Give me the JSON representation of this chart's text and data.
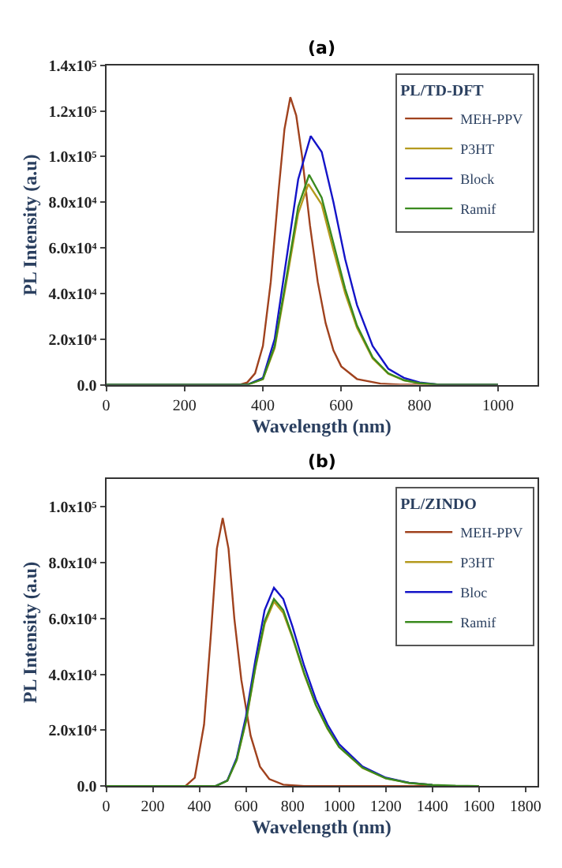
{
  "chart_data": [
    {
      "type": "line",
      "title": "(a)",
      "xlabel": "Wavelength (nm)",
      "ylabel": "PL Intensity (a.u)",
      "legend_title": "PL/TD-DFT",
      "legend": "top right",
      "marker": "none",
      "line_style": "solid",
      "xlim": [
        0,
        1100
      ],
      "xticks": [
        0,
        200,
        400,
        600,
        800,
        1000
      ],
      "ylim": [
        0,
        140000
      ],
      "yticks": [
        {
          "value": 0,
          "label": "0.0"
        },
        {
          "value": 20000,
          "label": "2.0x10⁴"
        },
        {
          "value": 40000,
          "label": "4.0x10⁴"
        },
        {
          "value": 60000,
          "label": "6.0x10⁴"
        },
        {
          "value": 80000,
          "label": "8.0x10⁴"
        },
        {
          "value": 100000,
          "label": "1.0x10⁵"
        },
        {
          "value": 120000,
          "label": "1.2x10⁵"
        },
        {
          "value": 140000,
          "label": "1.4x10⁵"
        }
      ],
      "series": [
        {
          "name": "MEH-PPV",
          "color": "#a0421e",
          "x": [
            0,
            340,
            360,
            380,
            400,
            420,
            440,
            455,
            470,
            485,
            500,
            520,
            540,
            560,
            580,
            600,
            640,
            700,
            750,
            1000
          ],
          "values": [
            0,
            0,
            1000,
            5000,
            17000,
            45000,
            85000,
            112000,
            126000,
            118000,
            100000,
            70000,
            45000,
            27000,
            15000,
            8000,
            2500,
            500,
            0,
            0
          ]
        },
        {
          "name": "P3HT",
          "color": "#b49a1e",
          "x": [
            0,
            360,
            400,
            430,
            460,
            490,
            516,
            550,
            580,
            610,
            640,
            680,
            720,
            760,
            800,
            850,
            1000
          ],
          "values": [
            0,
            0,
            2400,
            16000,
            45000,
            75000,
            88000,
            79000,
            59000,
            40000,
            25000,
            11500,
            4800,
            1900,
            600,
            0,
            0
          ]
        },
        {
          "name": "Block",
          "color": "#1414c8",
          "x": [
            0,
            360,
            400,
            430,
            460,
            490,
            522,
            550,
            580,
            610,
            640,
            680,
            720,
            760,
            800,
            850,
            1000
          ],
          "values": [
            0,
            0,
            3000,
            20000,
            55000,
            90000,
            109000,
            102000,
            80000,
            55000,
            35000,
            17000,
            7000,
            3000,
            1000,
            0,
            0
          ]
        },
        {
          "name": "Ramif",
          "color": "#3a8a1e",
          "x": [
            0,
            360,
            400,
            430,
            460,
            490,
            518,
            550,
            580,
            610,
            640,
            680,
            720,
            760,
            800,
            850,
            1000
          ],
          "values": [
            0,
            0,
            2500,
            17000,
            47000,
            78000,
            92000,
            82000,
            62000,
            42000,
            26000,
            12000,
            5000,
            2000,
            700,
            0,
            0
          ]
        }
      ]
    },
    {
      "type": "line",
      "title": "(b)",
      "xlabel": "Wavelength (nm)",
      "ylabel": "PL Intensity (a.u)",
      "legend_title": "PL/ZINDO",
      "legend": "top right",
      "marker": "none",
      "line_style": "solid",
      "xlim": [
        0,
        1850
      ],
      "xticks": [
        0,
        200,
        400,
        600,
        800,
        1000,
        1200,
        1400,
        1600,
        1800
      ],
      "ylim": [
        0,
        110000
      ],
      "yticks": [
        {
          "value": 0,
          "label": "0.0"
        },
        {
          "value": 20000,
          "label": "2.0x10⁴"
        },
        {
          "value": 40000,
          "label": "4.0x10⁴"
        },
        {
          "value": 60000,
          "label": "6.0x10⁴"
        },
        {
          "value": 80000,
          "label": "8.0x10⁴"
        },
        {
          "value": 100000,
          "label": "1.0x10⁵"
        }
      ],
      "series": [
        {
          "name": "MEH-PPV",
          "color": "#a0421e",
          "x": [
            0,
            340,
            380,
            420,
            450,
            475,
            500,
            525,
            550,
            580,
            620,
            660,
            700,
            760,
            850,
            1600
          ],
          "values": [
            0,
            0,
            3000,
            22000,
            55000,
            85000,
            96000,
            85000,
            60000,
            38000,
            18000,
            7000,
            2500,
            500,
            0,
            0
          ]
        },
        {
          "name": "P3HT",
          "color": "#b49a1e",
          "x": [
            0,
            470,
            520,
            560,
            600,
            640,
            680,
            720,
            760,
            800,
            850,
            900,
            950,
            1000,
            1100,
            1200,
            1300,
            1400
          ],
          "values": [
            0,
            0,
            1900,
            9300,
            23000,
            42000,
            58000,
            66000,
            62000,
            53000,
            40000,
            29000,
            20500,
            14000,
            6500,
            2800,
            1100,
            400
          ]
        },
        {
          "name": "Bloc",
          "color": "#1414c8",
          "x": [
            0,
            470,
            520,
            560,
            600,
            640,
            680,
            720,
            760,
            800,
            850,
            900,
            950,
            1000,
            1100,
            1200,
            1300,
            1400
          ],
          "values": [
            0,
            0,
            2000,
            10000,
            25000,
            45000,
            63000,
            71000,
            67000,
            57000,
            43000,
            31000,
            22000,
            15000,
            7000,
            3000,
            1200,
            400
          ]
        },
        {
          "name": "Ramif",
          "color": "#3a8a1e",
          "x": [
            0,
            470,
            520,
            560,
            600,
            640,
            680,
            720,
            760,
            800,
            850,
            900,
            950,
            1000,
            1100,
            1200,
            1300,
            1400,
            1500,
            1600
          ],
          "values": [
            0,
            0,
            1900,
            9400,
            23500,
            42500,
            59000,
            67000,
            63000,
            53500,
            40500,
            29000,
            20700,
            14000,
            6600,
            2800,
            1100,
            400,
            100,
            0
          ]
        }
      ]
    }
  ]
}
